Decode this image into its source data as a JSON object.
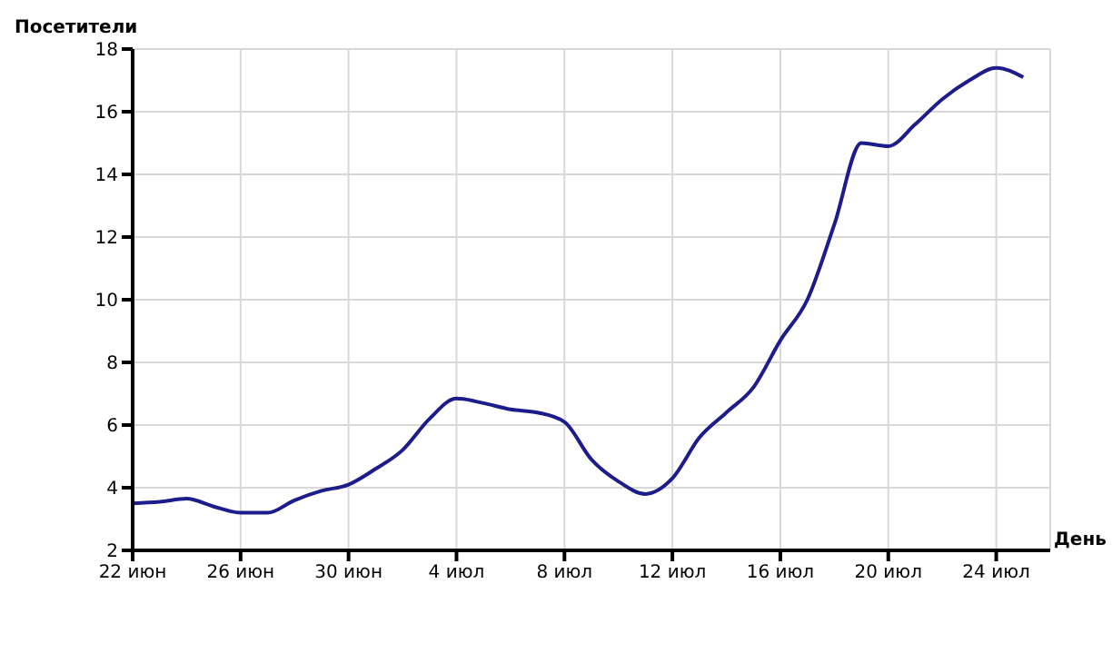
{
  "chart_data": {
    "type": "line",
    "xlabel": "День",
    "ylabel": "Посетители",
    "x": [
      "--06-22",
      "--06-23",
      "--06-24",
      "--06-25",
      "--06-26",
      "--06-27",
      "--06-28",
      "--06-29",
      "--06-30",
      "--07-01",
      "--07-02",
      "--07-03",
      "--07-04",
      "--07-05",
      "--07-06",
      "--07-07",
      "--07-08",
      "--07-09",
      "--07-10",
      "--07-11",
      "--07-12",
      "--07-13",
      "--07-14",
      "--07-15",
      "--07-16",
      "--07-17",
      "--07-18",
      "--07-19",
      "--07-20",
      "--07-21",
      "--07-22",
      "--07-23",
      "--07-24",
      "--07-25"
    ],
    "series": [
      {
        "color": "#1c1c8c",
        "values": [
          3.5,
          3.55,
          3.65,
          3.4,
          3.2,
          3.2,
          3.6,
          3.9,
          4.1,
          4.6,
          5.2,
          6.2,
          6.85,
          6.7,
          6.5,
          6.4,
          6.1,
          4.9,
          4.2,
          3.8,
          4.3,
          5.6,
          6.4,
          7.2,
          8.7,
          10.0,
          12.4,
          15.0,
          14.9,
          15.6,
          16.4,
          17.0,
          17.4,
          17.1
        ]
      }
    ],
    "xlim": [
      "--06-22",
      "--07-26"
    ],
    "xticks": [
      {
        "value": "--06-22",
        "label": "22 июн"
      },
      {
        "value": "--06-26",
        "label": "26 июн"
      },
      {
        "value": "--06-30",
        "label": "30 июн"
      },
      {
        "value": "--07-04",
        "label": "4 июл"
      },
      {
        "value": "--07-08",
        "label": "8 июл"
      },
      {
        "value": "--07-12",
        "label": "12 июл"
      },
      {
        "value": "--07-16",
        "label": "16 июл"
      },
      {
        "value": "--07-20",
        "label": "20 июл"
      },
      {
        "value": "--07-24",
        "label": "24 июл"
      }
    ],
    "ylim": [
      2,
      18
    ],
    "yticks": [
      2,
      4,
      6,
      8,
      10,
      12,
      14,
      16,
      18
    ],
    "grid": true,
    "marker": "none",
    "line_style": "solid"
  }
}
